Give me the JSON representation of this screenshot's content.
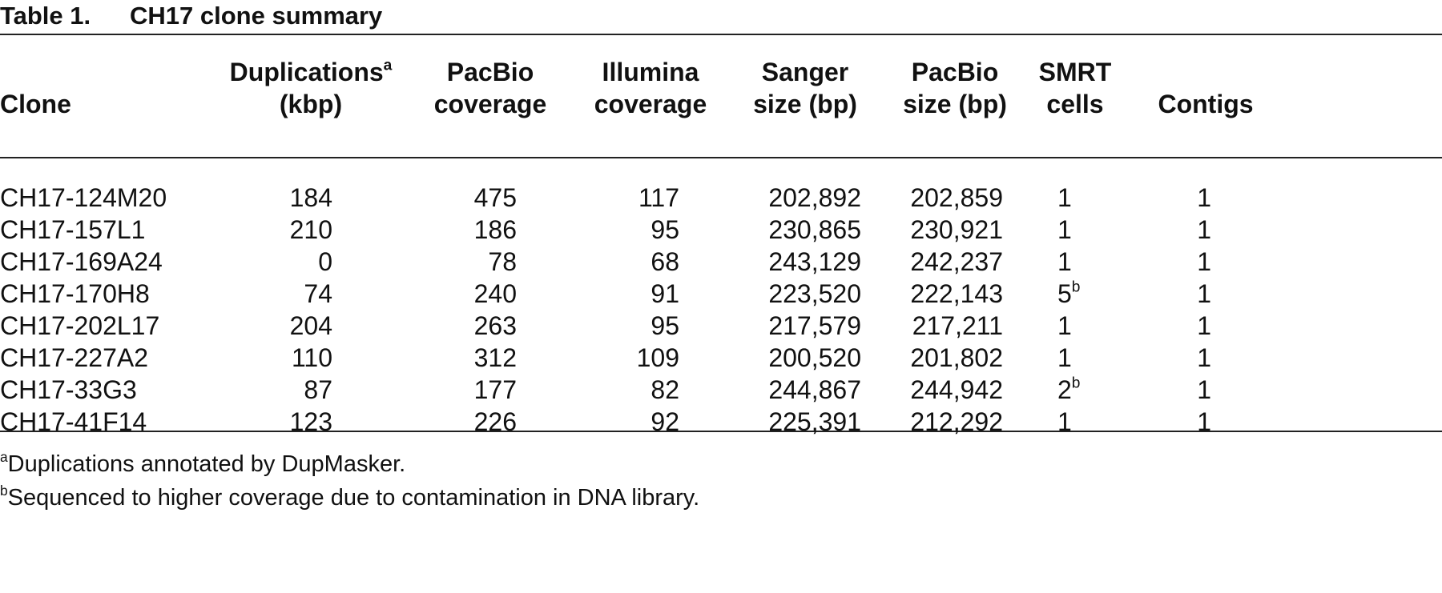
{
  "header": {
    "label": "Table 1.",
    "title": "CH17 clone summary"
  },
  "table": {
    "header": [
      {
        "lines": [
          "Clone"
        ]
      },
      {
        "lines": [
          "Duplications",
          "(kbp)"
        ],
        "sup": "a"
      },
      {
        "lines": [
          "PacBio",
          "coverage"
        ]
      },
      {
        "lines": [
          "Illumina",
          "coverage"
        ]
      },
      {
        "lines": [
          "Sanger",
          "size (bp)"
        ]
      },
      {
        "lines": [
          "PacBio",
          "size (bp)"
        ]
      },
      {
        "lines": [
          "SMRT",
          "cells"
        ]
      },
      {
        "lines": [
          "Contigs"
        ]
      }
    ],
    "rows": [
      [
        "CH17-124M20",
        "184",
        "475",
        "117",
        "202,892",
        "202,859",
        "1",
        "1"
      ],
      [
        "CH17-157L1",
        "210",
        "186",
        "95",
        "230,865",
        "230,921",
        "1",
        "1"
      ],
      [
        "CH17-169A24",
        "0",
        "78",
        "68",
        "243,129",
        "242,237",
        "1",
        "1"
      ],
      [
        "CH17-170H8",
        "74",
        "240",
        "91",
        "223,520",
        "222,143",
        {
          "text": "5",
          "sup": "b"
        },
        "1"
      ],
      [
        "CH17-202L17",
        "204",
        "263",
        "95",
        "217,579",
        "217,211",
        "1",
        "1"
      ],
      [
        "CH17-227A2",
        "110",
        "312",
        "109",
        "200,520",
        "201,802",
        "1",
        "1"
      ],
      [
        "CH17-33G3",
        "87",
        "177",
        "82",
        "244,867",
        "244,942",
        {
          "text": "2",
          "sup": "b"
        },
        "1"
      ],
      [
        "CH17-41F14",
        "123",
        "226",
        "92",
        "225,391",
        "212,292",
        "1",
        "1"
      ]
    ]
  },
  "footnotes": [
    {
      "mark": "a",
      "text": "Duplications annotated by DupMasker."
    },
    {
      "mark": "b",
      "text": "Sequenced to higher coverage due to contamination in DNA library."
    }
  ]
}
